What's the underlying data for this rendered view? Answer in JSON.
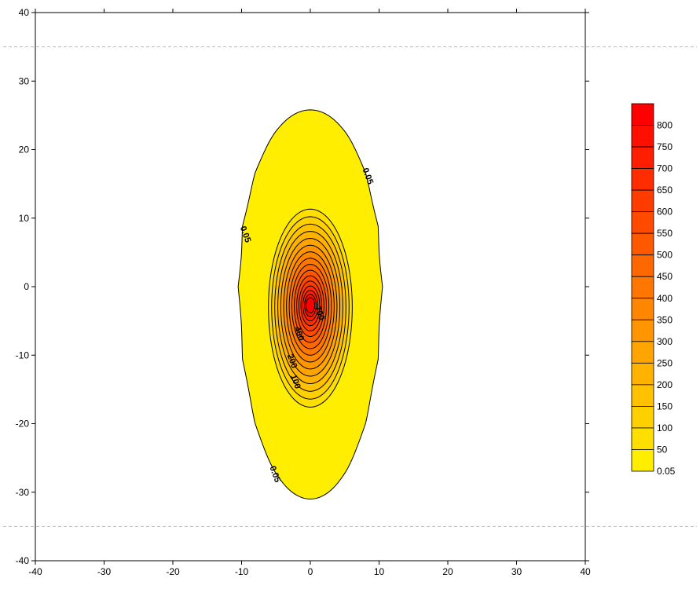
{
  "chart_data": {
    "type": "contour",
    "title": "",
    "xlabel": "",
    "ylabel": "",
    "xlim": [
      -40,
      40
    ],
    "ylim": [
      -40,
      40
    ],
    "x_ticks": [
      -40,
      -30,
      -20,
      -10,
      0,
      10,
      20,
      30,
      40
    ],
    "y_ticks": [
      -40,
      -30,
      -20,
      -10,
      0,
      10,
      20,
      30,
      40
    ],
    "x_tick_labels": [
      "-40",
      "-30",
      "-20",
      "-10",
      "0",
      "10",
      "20",
      "30",
      "40"
    ],
    "y_tick_labels": [
      "-40",
      "-30",
      "-20",
      "-10",
      "0",
      "10",
      "20",
      "30",
      "40"
    ],
    "reference_lines_y": [
      35,
      -35
    ],
    "grid": false,
    "source_center": [
      0,
      -3
    ],
    "contour_levels": [
      0.05,
      50,
      100,
      150,
      200,
      250,
      300,
      350,
      400,
      450,
      500,
      550,
      600,
      650,
      700,
      750,
      800
    ],
    "contour_labels": [
      {
        "text": "0.05",
        "x": 8,
        "y": 16
      },
      {
        "text": "0.05",
        "x": -9.8,
        "y": 7.5
      },
      {
        "text": "0.05",
        "x": -5.5,
        "y": -27.5
      },
      {
        "text": "100",
        "x": -2.5,
        "y": -14
      },
      {
        "text": "200",
        "x": -3,
        "y": -11
      },
      {
        "text": "400",
        "x": -2,
        "y": -7
      },
      {
        "text": "700",
        "x": 1,
        "y": -4
      }
    ],
    "legend": {
      "position": "right",
      "labels": [
        "800",
        "750",
        "700",
        "650",
        "600",
        "550",
        "500",
        "450",
        "400",
        "350",
        "300",
        "250",
        "200",
        "150",
        "100",
        "50",
        "0.05"
      ]
    },
    "colors": {
      "low": "#ffee00",
      "high": "#ff0000",
      "outline": "#000000",
      "reference_line": "#bbbbbb"
    }
  }
}
